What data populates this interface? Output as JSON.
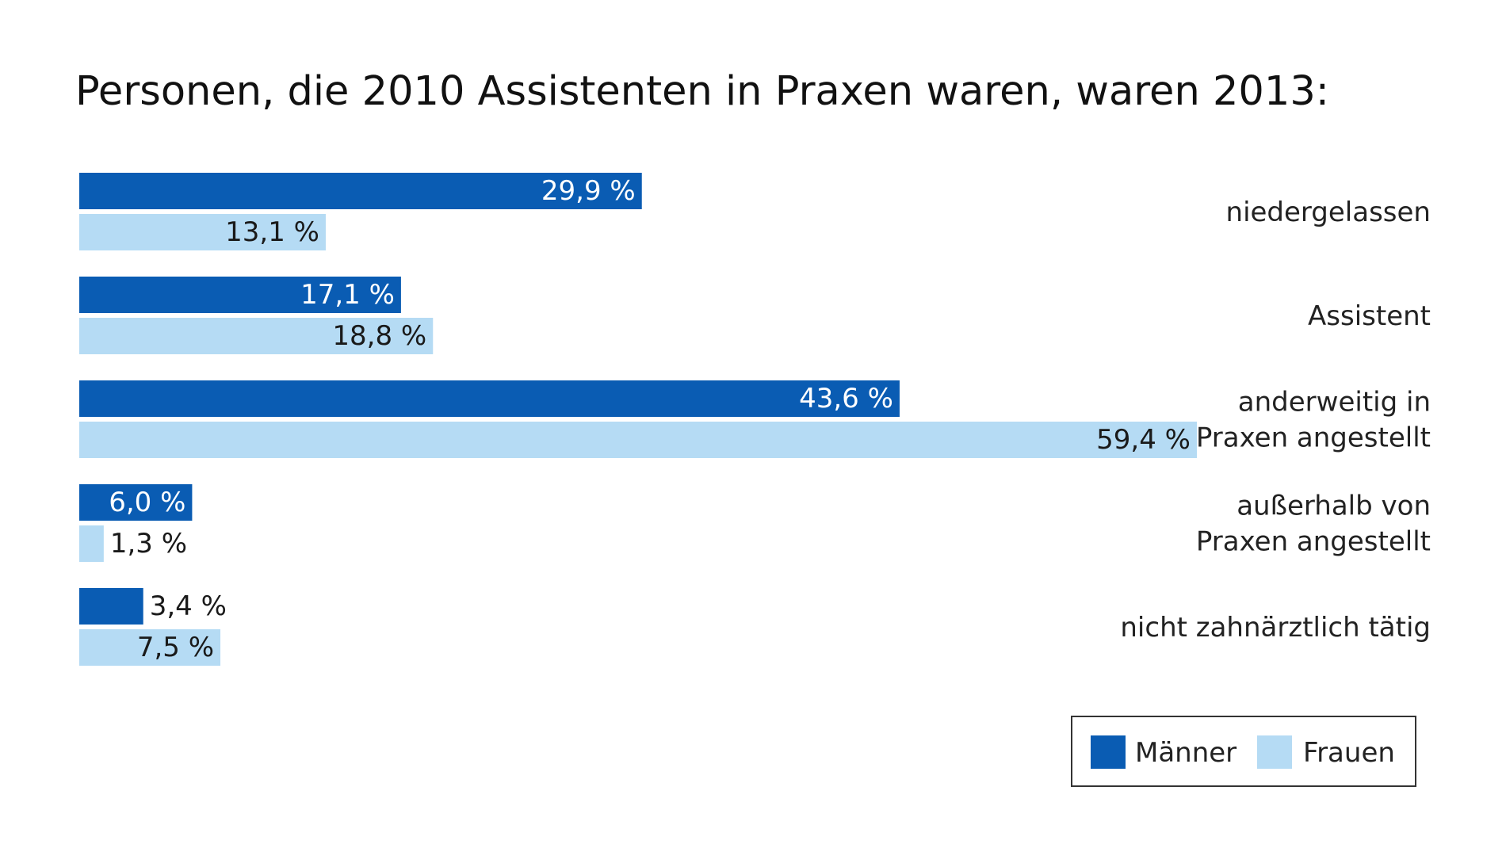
{
  "chart_data": {
    "type": "bar",
    "orientation": "horizontal",
    "title": "Personen, die 2010 Assistenten in Praxen waren, waren 2013:",
    "categories": [
      [
        "niedergelassen"
      ],
      [
        "Assistent"
      ],
      [
        "anderweitig in",
        "Praxen angestellt"
      ],
      [
        "außerhalb von",
        "Praxen angestellt"
      ],
      [
        "nicht zahnärztlich tätig"
      ]
    ],
    "series": [
      {
        "name": "Männer",
        "color": "#0a5cb3",
        "values": [
          29.9,
          17.1,
          43.6,
          6.0,
          3.4
        ],
        "labels": [
          "29,9 %",
          "17,1 %",
          "43,6 %",
          "6,0 %",
          "3,4 %"
        ]
      },
      {
        "name": "Frauen",
        "color": "#b5dbf4",
        "values": [
          13.1,
          18.8,
          59.4,
          1.3,
          7.5
        ],
        "labels": [
          "13,1 %",
          "18,8 %",
          "59,4 %",
          "1,3 %",
          "7,5 %"
        ]
      }
    ],
    "xlim": [
      0,
      59.4
    ],
    "grid": false,
    "legend_position": "bottom-right"
  }
}
